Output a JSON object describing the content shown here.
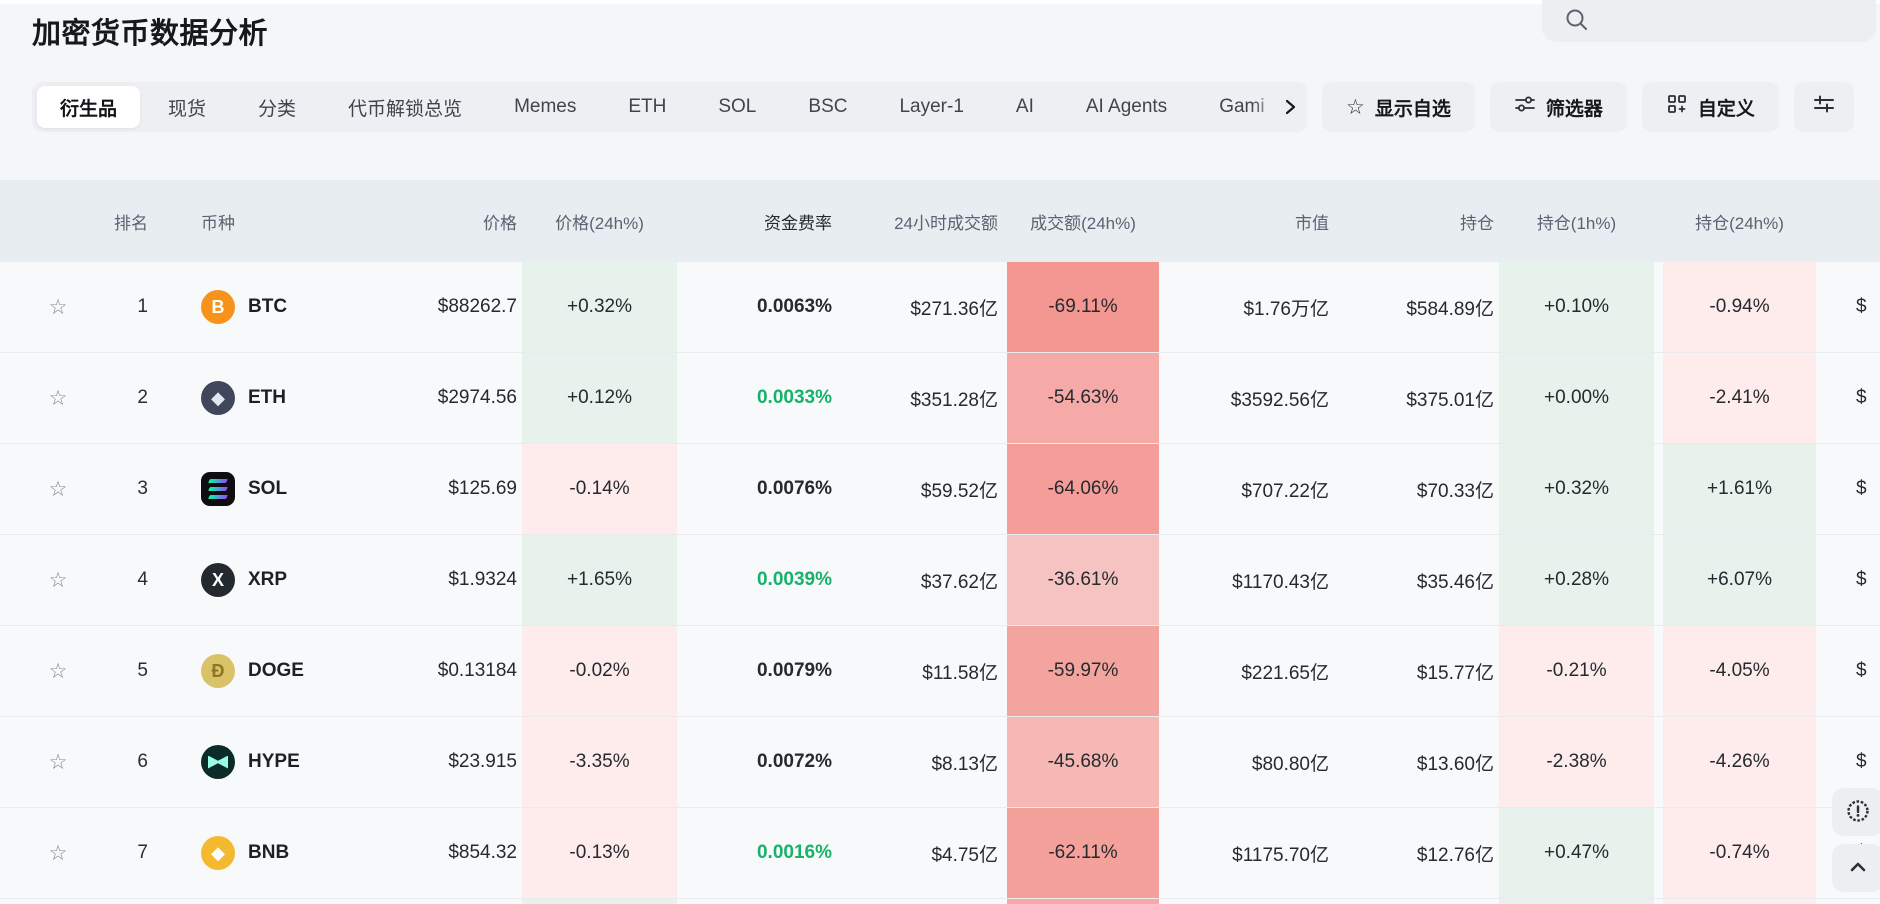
{
  "page": {
    "title": "加密货币数据分析"
  },
  "search": {
    "placeholder": ""
  },
  "tabs": {
    "items": [
      {
        "label": "衍生品",
        "active": true
      },
      {
        "label": "现货",
        "active": false
      },
      {
        "label": "分类",
        "active": false
      },
      {
        "label": "代币解锁总览",
        "active": false
      },
      {
        "label": "Memes",
        "active": false
      },
      {
        "label": "ETH",
        "active": false
      },
      {
        "label": "SOL",
        "active": false
      },
      {
        "label": "BSC",
        "active": false
      },
      {
        "label": "Layer-1",
        "active": false
      },
      {
        "label": "AI",
        "active": false
      },
      {
        "label": "AI Agents",
        "active": false
      },
      {
        "label": "Gami",
        "active": false
      }
    ]
  },
  "actions": {
    "show_watchlist": "显示自选",
    "filter": "筛选器",
    "customize": "自定义",
    "watchlist_icon": "star-outline"
  },
  "table": {
    "columns": [
      {
        "id": "rank",
        "label": "排名"
      },
      {
        "id": "coin",
        "label": "币种"
      },
      {
        "id": "price",
        "label": "价格"
      },
      {
        "id": "price_24h_pct",
        "label": "价格(24h%)"
      },
      {
        "id": "funding_rate",
        "label": "资金费率"
      },
      {
        "id": "volume_24h",
        "label": "24小时成交额"
      },
      {
        "id": "volume_24h_pct",
        "label": "成交额(24h%)"
      },
      {
        "id": "market_cap",
        "label": "市值"
      },
      {
        "id": "open_interest",
        "label": "持仓"
      },
      {
        "id": "oi_1h_pct",
        "label": "持仓(1h%)"
      },
      {
        "id": "oi_24h_pct",
        "label": "持仓(24h%)"
      }
    ],
    "rows": [
      {
        "rank": "1",
        "symbol": "BTC",
        "icon": {
          "type": "circle",
          "bg": "#f7931a",
          "fg": "#ffffff",
          "glyph": "B"
        },
        "price": "$88262.7",
        "pct24": {
          "text": "+0.32%",
          "value": 0.32
        },
        "funding": {
          "text": "0.0063%",
          "green": false
        },
        "volume": "$271.36亿",
        "vol_pct": {
          "text": "-69.11%",
          "value": -69.11
        },
        "mcap": "$1.76万亿",
        "oi": "$584.89亿",
        "oi1h": {
          "text": "+0.10%",
          "value": 0.1
        },
        "oi24h": {
          "text": "-0.94%",
          "value": -0.94
        },
        "next": "$"
      },
      {
        "rank": "2",
        "symbol": "ETH",
        "icon": {
          "type": "circle",
          "bg": "#41475a",
          "fg": "#e3e6ee",
          "glyph": "◆"
        },
        "price": "$2974.56",
        "pct24": {
          "text": "+0.12%",
          "value": 0.12
        },
        "funding": {
          "text": "0.0033%",
          "green": true
        },
        "volume": "$351.28亿",
        "vol_pct": {
          "text": "-54.63%",
          "value": -54.63
        },
        "mcap": "$3592.56亿",
        "oi": "$375.01亿",
        "oi1h": {
          "text": "+0.00%",
          "value": 0.0
        },
        "oi24h": {
          "text": "-2.41%",
          "value": -2.41
        },
        "next": "$"
      },
      {
        "rank": "3",
        "symbol": "SOL",
        "icon": {
          "type": "sol",
          "bg": "#0d0d12",
          "fg": "#00ffa3",
          "glyph": ""
        },
        "price": "$125.69",
        "pct24": {
          "text": "-0.14%",
          "value": -0.14
        },
        "funding": {
          "text": "0.0076%",
          "green": false
        },
        "volume": "$59.52亿",
        "vol_pct": {
          "text": "-64.06%",
          "value": -64.06
        },
        "mcap": "$707.22亿",
        "oi": "$70.33亿",
        "oi1h": {
          "text": "+0.32%",
          "value": 0.32
        },
        "oi24h": {
          "text": "+1.61%",
          "value": 1.61
        },
        "next": "$"
      },
      {
        "rank": "4",
        "symbol": "XRP",
        "icon": {
          "type": "circle",
          "bg": "#23292f",
          "fg": "#ffffff",
          "glyph": "X"
        },
        "price": "$1.9324",
        "pct24": {
          "text": "+1.65%",
          "value": 1.65
        },
        "funding": {
          "text": "0.0039%",
          "green": true
        },
        "volume": "$37.62亿",
        "vol_pct": {
          "text": "-36.61%",
          "value": -36.61
        },
        "mcap": "$1170.43亿",
        "oi": "$35.46亿",
        "oi1h": {
          "text": "+0.28%",
          "value": 0.28
        },
        "oi24h": {
          "text": "+6.07%",
          "value": 6.07
        },
        "next": "$"
      },
      {
        "rank": "5",
        "symbol": "DOGE",
        "icon": {
          "type": "circle",
          "bg": "#d9c268",
          "fg": "#8f7620",
          "glyph": "Ð"
        },
        "price": "$0.13184",
        "pct24": {
          "text": "-0.02%",
          "value": -0.02
        },
        "funding": {
          "text": "0.0079%",
          "green": false
        },
        "volume": "$11.58亿",
        "vol_pct": {
          "text": "-59.97%",
          "value": -59.97
        },
        "mcap": "$221.65亿",
        "oi": "$15.77亿",
        "oi1h": {
          "text": "-0.21%",
          "value": -0.21
        },
        "oi24h": {
          "text": "-4.05%",
          "value": -4.05
        },
        "next": "$"
      },
      {
        "rank": "6",
        "symbol": "HYPE",
        "icon": {
          "type": "hype",
          "bg": "#0b2b26",
          "fg": "#97fce4",
          "glyph": ""
        },
        "price": "$23.915",
        "pct24": {
          "text": "-3.35%",
          "value": -3.35
        },
        "funding": {
          "text": "0.0072%",
          "green": false
        },
        "volume": "$8.13亿",
        "vol_pct": {
          "text": "-45.68%",
          "value": -45.68
        },
        "mcap": "$80.80亿",
        "oi": "$13.60亿",
        "oi1h": {
          "text": "-2.38%",
          "value": -2.38
        },
        "oi24h": {
          "text": "-4.26%",
          "value": -4.26
        },
        "next": "$"
      },
      {
        "rank": "7",
        "symbol": "BNB",
        "icon": {
          "type": "circle",
          "bg": "#f3ba2f",
          "fg": "#ffffff",
          "glyph": "◆"
        },
        "price": "$854.32",
        "pct24": {
          "text": "-0.13%",
          "value": -0.13
        },
        "funding": {
          "text": "0.0016%",
          "green": true
        },
        "volume": "$4.75亿",
        "vol_pct": {
          "text": "-62.11%",
          "value": -62.11
        },
        "mcap": "$1175.70亿",
        "oi": "$12.76亿",
        "oi1h": {
          "text": "+0.47%",
          "value": 0.47
        },
        "oi24h": {
          "text": "-0.74%",
          "value": -0.74
        },
        "next": "$"
      }
    ],
    "partial_row": {
      "pct24": "up",
      "vol_heat": 0.55,
      "oi1h": "up",
      "oi24h": "down"
    }
  },
  "colors": {
    "accent_green_text": "#17b26a",
    "cell_up_bg": "#e7f2ec",
    "cell_down_bg": "#fdeceb",
    "heat_rgb": "242,106,98",
    "header_bg": "#e8edf2",
    "active_tab_bg": "#ffffff",
    "toolbar_bg": "#edeff2"
  }
}
